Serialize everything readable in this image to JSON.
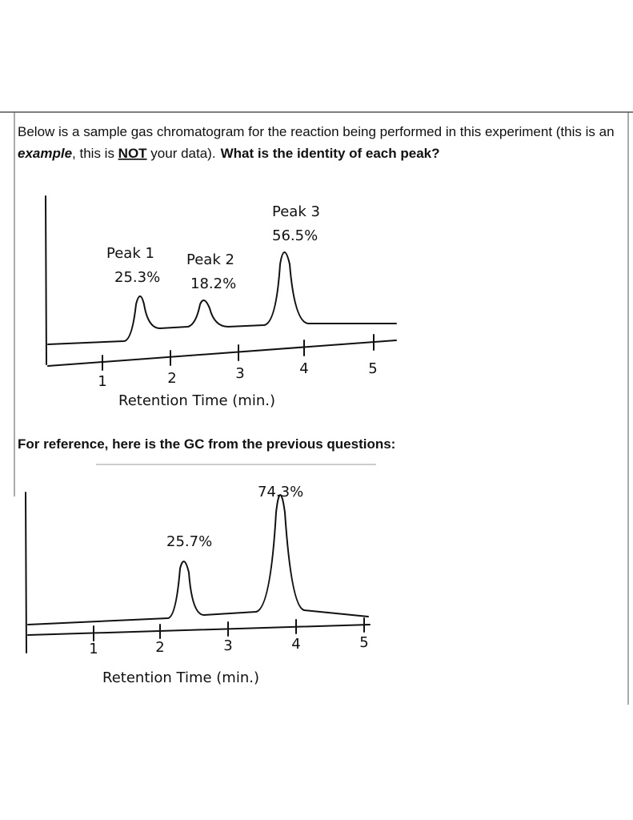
{
  "question": {
    "line1": "Below is a sample gas chromatogram for the reaction being performed in this experiment (this is an",
    "example": "example",
    "mid1": ", this is ",
    "not": "NOT",
    "mid2": " your data).",
    "ask": "What is the identity of each peak?"
  },
  "figure1": {
    "peaks": [
      {
        "name": "Peak 1",
        "percent": "25.3%"
      },
      {
        "name": "Peak 2",
        "percent": "18.2%"
      },
      {
        "name": "Peak 3",
        "percent": "56.5%"
      }
    ],
    "ticks": [
      "1",
      "2",
      "3",
      "4",
      "5"
    ],
    "axis_label": "Retention Time (min.)"
  },
  "reference": "For reference, here is the GC from the previous questions:",
  "figure2": {
    "peaks": [
      "25.7%",
      "74.3%"
    ],
    "ticks": [
      "1",
      "2",
      "3",
      "4",
      "5"
    ],
    "axis_label": "Retention Time (min.)"
  }
}
